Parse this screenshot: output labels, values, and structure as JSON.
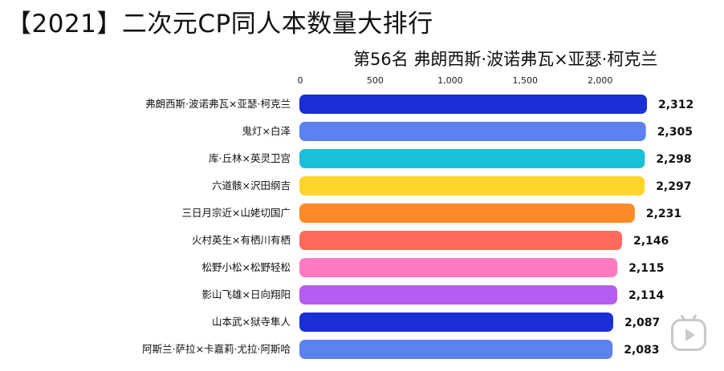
{
  "header": {
    "title": "【2021】二次元CP同人本数量大排行",
    "subtitle": "第56名 弗朗西斯·波诺弗瓦×亚瑟·柯克兰"
  },
  "chart_data": {
    "type": "bar",
    "orientation": "horizontal",
    "title": "",
    "xlabel": "",
    "ylabel": "",
    "xlim": [
      0,
      2312
    ],
    "ticks": [
      0,
      500,
      1000,
      1500,
      2000
    ],
    "tick_labels": [
      "0",
      "500",
      "1,000",
      "1,500",
      "2,000"
    ],
    "grid": false,
    "categories": [
      "弗朗西斯·波诺弗瓦×亚瑟·柯克兰",
      "鬼灯×白泽",
      "库·丘林×英灵卫宫",
      "六道骸×沢田纲吉",
      "三日月宗近×山姥切国广",
      "火村英生×有栖川有栖",
      "松野小松×松野轻松",
      "影山飞雄×日向翔阳",
      "山本武×狱寺隼人",
      "阿斯兰·萨拉×卡嘉莉·尤拉·阿斯哈"
    ],
    "values": [
      2312,
      2305,
      2298,
      2297,
      2231,
      2146,
      2115,
      2114,
      2087,
      2083
    ],
    "value_labels": [
      "2,312",
      "2,305",
      "2,298",
      "2,297",
      "2,231",
      "2,146",
      "2,115",
      "2,114",
      "2,087",
      "2,083"
    ],
    "colors": [
      "#1a2fd6",
      "#5b82ee",
      "#1cbfd9",
      "#ffd52a",
      "#ff8a28",
      "#ff6a5c",
      "#ff7ac1",
      "#b45df0",
      "#1a2fd6",
      "#5b82ee"
    ]
  },
  "watermark_icon": "bilibili-play-icon"
}
